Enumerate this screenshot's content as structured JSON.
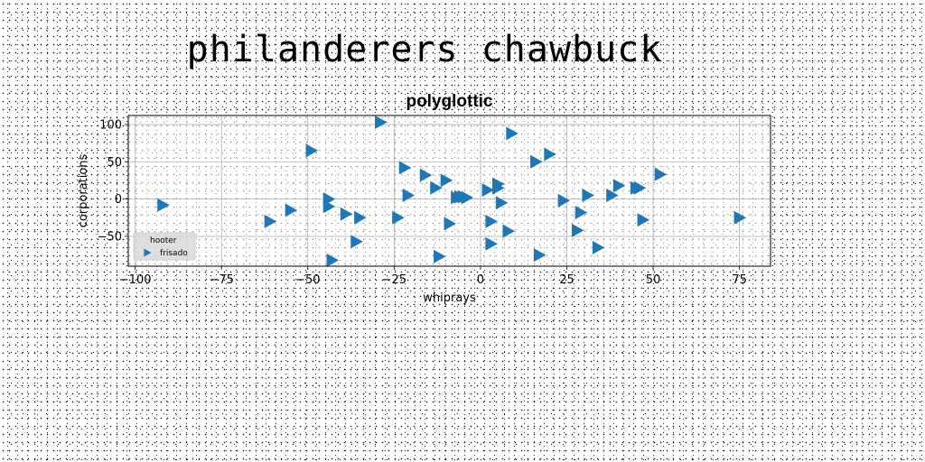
{
  "figure": {
    "suptitle": "philanderers chawbuck"
  },
  "chart_data": {
    "type": "scatter",
    "title": "polyglottic",
    "xlabel": "whiprays",
    "ylabel": "corporations",
    "xlim": [
      -102,
      84
    ],
    "ylim": [
      -90,
      112
    ],
    "xticks": [
      -100,
      -75,
      -50,
      -25,
      0,
      25,
      50,
      75
    ],
    "xtick_labels": [
      "−100",
      "−75",
      "−50",
      "−25",
      "0",
      "25",
      "50",
      "75"
    ],
    "yticks": [
      -50,
      0,
      50,
      100
    ],
    "ytick_labels": [
      "−50",
      "0",
      "50",
      "100"
    ],
    "grid": true,
    "marker": "triangle-right",
    "legend": {
      "title": "hooter",
      "position": "lower-left",
      "entries": [
        "frisado"
      ]
    },
    "series": [
      {
        "name": "frisado",
        "color": "#1f77b4",
        "points": [
          [
            -92,
            -8
          ],
          [
            -61,
            -30
          ],
          [
            -55,
            -15
          ],
          [
            -49,
            65
          ],
          [
            -44,
            -10
          ],
          [
            -44,
            0
          ],
          [
            -43,
            -82
          ],
          [
            -39,
            -20
          ],
          [
            -36,
            -57
          ],
          [
            -35,
            -25
          ],
          [
            -29,
            103
          ],
          [
            -24,
            -25
          ],
          [
            -22,
            42
          ],
          [
            -21,
            5
          ],
          [
            -16,
            32
          ],
          [
            -13,
            15
          ],
          [
            -12,
            -77
          ],
          [
            -10,
            25
          ],
          [
            -9,
            -33
          ],
          [
            -7,
            2
          ],
          [
            -6,
            3
          ],
          [
            -5,
            3
          ],
          [
            -4,
            2
          ],
          [
            2,
            12
          ],
          [
            3,
            -60
          ],
          [
            3,
            -30
          ],
          [
            5,
            20
          ],
          [
            5,
            15
          ],
          [
            6,
            -5
          ],
          [
            8,
            -43
          ],
          [
            9,
            88
          ],
          [
            16,
            50
          ],
          [
            17,
            -75
          ],
          [
            20,
            60
          ],
          [
            24,
            -2
          ],
          [
            28,
            -42
          ],
          [
            29,
            -18
          ],
          [
            31,
            5
          ],
          [
            34,
            -65
          ],
          [
            38,
            5
          ],
          [
            40,
            18
          ],
          [
            45,
            15
          ],
          [
            46,
            15
          ],
          [
            47,
            -28
          ],
          [
            52,
            33
          ],
          [
            75,
            -25
          ]
        ]
      }
    ]
  }
}
